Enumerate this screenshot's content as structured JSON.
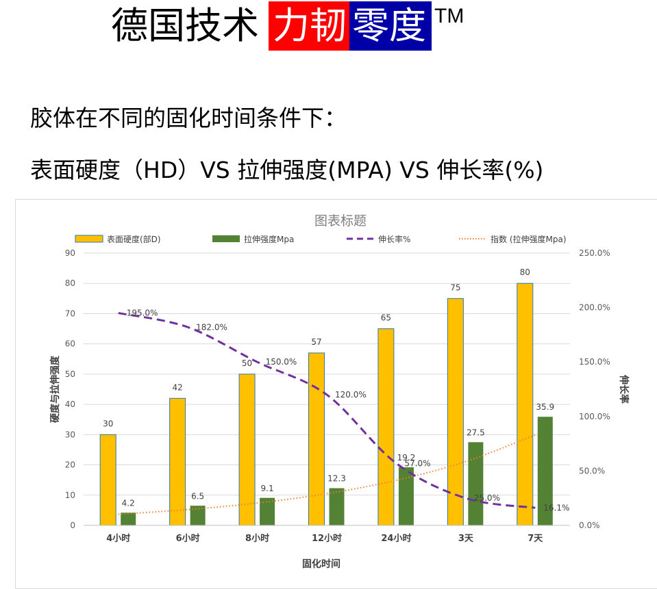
{
  "brand": {
    "plain": "德国技术",
    "red": "力韧",
    "blue": "零度",
    "tm": "TM"
  },
  "heading": {
    "line1": "胶体在不同的固化时间条件下：",
    "line2": "表面硬度（HD）VS 拉伸强度(MPA)  VS 伸长率(%)"
  },
  "colors": {
    "brand_red": "#ff0000",
    "brand_blue": "#0000a6",
    "hardness": "#ffc000",
    "hardness_border": "#2e75b6",
    "strength": "#548235",
    "elongation": "#7030a0",
    "trend": "#ed7d31"
  },
  "chart_data": {
    "type": "bar",
    "title": "图表标题",
    "xlabel": "固化时间",
    "ylabel": "硬度与拉伸强度",
    "y2label": "伸长率",
    "categories": [
      "4小时",
      "6小时",
      "8小时",
      "12小时",
      "24小时",
      "3天",
      "7天"
    ],
    "ylim": [
      0,
      90
    ],
    "yticks": [
      "0",
      "10",
      "20",
      "30",
      "40",
      "50",
      "60",
      "70",
      "80",
      "90"
    ],
    "y2lim": [
      0,
      250
    ],
    "y2ticks": [
      "0.0%",
      "50.0%",
      "100.0%",
      "150.0%",
      "200.0%",
      "250.0%"
    ],
    "legend_position": "top",
    "series": [
      {
        "name": "表面硬度(部D)",
        "kind": "bar",
        "values": [
          30,
          42,
          50,
          57,
          65,
          75,
          80
        ],
        "labels": [
          "30",
          "42",
          "50",
          "57",
          "65",
          "75",
          "80"
        ]
      },
      {
        "name": "拉伸强度Mpa",
        "kind": "bar",
        "values": [
          4.2,
          6.5,
          9.1,
          12.3,
          19.2,
          27.5,
          35.9
        ],
        "labels": [
          "4.2",
          "6.5",
          "9.1",
          "12.3",
          "19.2",
          "27.5",
          "35.9"
        ]
      },
      {
        "name": "伸长率%",
        "kind": "line",
        "axis": "secondary",
        "values": [
          195.0,
          182.0,
          150.0,
          120.0,
          57.0,
          25.0,
          16.1
        ],
        "labels": [
          "195.0%",
          "182.0%",
          "150.0%",
          "120.0%",
          "57.0%",
          "25.0%",
          "16.1%"
        ]
      },
      {
        "name": "指数 (拉伸强度Mpa)",
        "kind": "trendline",
        "values": [
          3.68,
          5.22,
          7.4,
          10.5,
          14.9,
          21.1,
          29.9
        ]
      }
    ]
  }
}
